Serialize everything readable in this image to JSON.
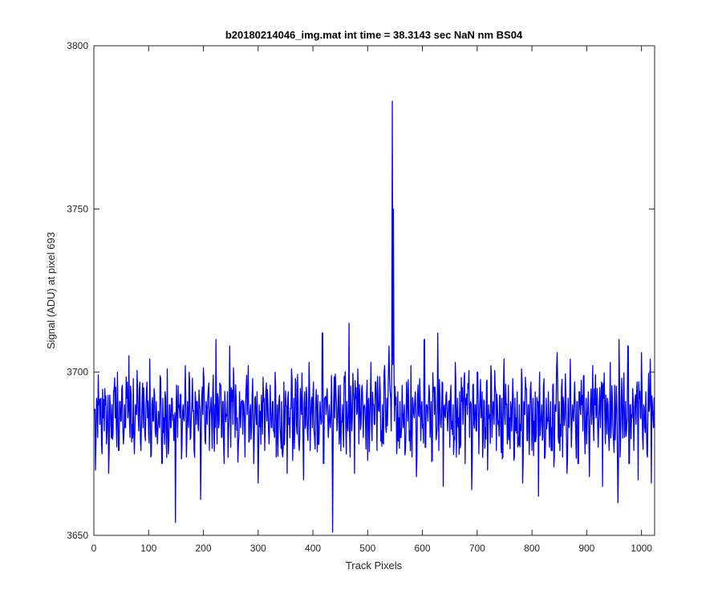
{
  "chart_data": {
    "type": "line",
    "title": "b20180214046_img.mat int time = 38.3143 sec  NaN nm BS04",
    "xlabel": "Track Pixels",
    "ylabel": "Signal (ADU) at pixel 693",
    "xlim": [
      0,
      1024
    ],
    "ylim": [
      3650,
      3800
    ],
    "x_ticks": [
      0,
      100,
      200,
      300,
      400,
      500,
      600,
      700,
      800,
      900,
      1000
    ],
    "y_ticks": [
      3650,
      3700,
      3750,
      3800
    ],
    "grid": false,
    "line_color": "#0000ff",
    "series": [
      {
        "x_start": 1,
        "x_step": 1,
        "noise_baseline": 3687,
        "values": [
          3688,
          3670,
          3692,
          3680,
          3690,
          3684,
          3692,
          3675,
          3686,
          3682,
          3690,
          3678,
          3688,
          3669,
          3693,
          3684,
          3690,
          3681,
          3695,
          3686,
          3683,
          3700,
          3676,
          3691,
          3685,
          3696,
          3678,
          3690,
          3683,
          3692,
          3686,
          3705,
          3680,
          3693,
          3684,
          3698,
          3675,
          3690,
          3687,
          3694,
          3682,
          3697,
          3676,
          3691,
          3683,
          3690,
          3679,
          3694,
          3686,
          3681,
          3704,
          3674,
          3690,
          3685,
          3695,
          3682,
          3691,
          3678,
          3688,
          3683,
          3698,
          3672,
          3692,
          3686,
          3694,
          3680,
          3701,
          3675,
          3690,
          3683,
          3692,
          3687,
          3684,
          3654,
          3696,
          3680,
          3689,
          3686,
          3693,
          3678,
          3690,
          3685,
          3702,
          3674,
          3691,
          3683,
          3697,
          3680,
          3690,
          3688,
          3676,
          3694,
          3684,
          3691,
          3682,
          3690,
          3661,
          3692,
          3687,
          3698,
          3679,
          3691,
          3684,
          3695,
          3676,
          3689,
          3686,
          3693,
          3683,
          3690,
          3710,
          3678,
          3692,
          3685,
          3696,
          3680,
          3691,
          3672,
          3689,
          3687,
          3694,
          3682,
          3708,
          3677,
          3691,
          3684,
          3696,
          3680,
          3690,
          3686,
          3678,
          3694,
          3683,
          3691,
          3681,
          3690,
          3674,
          3695,
          3687,
          3702,
          3679,
          3690,
          3683,
          3698,
          3672,
          3692,
          3686,
          3694,
          3666,
          3690,
          3688,
          3693,
          3681,
          3691,
          3676,
          3694,
          3685,
          3690,
          3678,
          3696,
          3683,
          3691,
          3682,
          3700,
          3674,
          3690,
          3686,
          3693,
          3680,
          3691,
          3674,
          3697,
          3684,
          3690,
          3669,
          3694,
          3686,
          3689,
          3701,
          3673,
          3692,
          3683,
          3697,
          3681,
          3691,
          3676,
          3695,
          3687,
          3690,
          3667,
          3694,
          3684,
          3692,
          3679,
          3703,
          3676,
          3691,
          3683,
          3697,
          3680,
          3690,
          3688,
          3693,
          3678,
          3691,
          3684,
          3712,
          3672,
          3692,
          3687,
          3695,
          3680,
          3690,
          3683,
          3699,
          3651,
          3692,
          3686,
          3694,
          3682,
          3691,
          3678,
          3696,
          3685,
          3690,
          3677,
          3697,
          3683,
          3691,
          3682,
          3715,
          3674,
          3690,
          3686,
          3694,
          3669,
          3692,
          3687,
          3701,
          3678,
          3691,
          3684,
          3696,
          3680,
          3690,
          3685,
          3693,
          3673,
          3692,
          3686,
          3703,
          3679,
          3690,
          3684,
          3697,
          3676,
          3691,
          3688,
          3694,
          3682,
          3690,
          3678,
          3702,
          3683,
          3692,
          3690,
          3708,
          3694,
          3682,
          3783,
          3750,
          3685,
          3690,
          3675,
          3694,
          3686,
          3691,
          3680,
          3696,
          3683,
          3690,
          3676,
          3697,
          3685,
          3691,
          3682,
          3702,
          3674,
          3690,
          3686,
          3694,
          3668,
          3692,
          3687,
          3698,
          3679,
          3691,
          3684,
          3710,
          3677,
          3690,
          3685,
          3696,
          3680,
          3691,
          3673,
          3694,
          3687,
          3690,
          3681,
          3712,
          3676,
          3692,
          3683,
          3697,
          3665,
          3690,
          3686,
          3694,
          3682,
          3691,
          3677,
          3696,
          3685,
          3690,
          3680,
          3703,
          3674,
          3692,
          3686,
          3694,
          3678,
          3691,
          3684,
          3698,
          3672,
          3690,
          3687,
          3695,
          3680,
          3691,
          3664,
          3696,
          3684,
          3690,
          3682,
          3700,
          3675,
          3692,
          3686,
          3694,
          3679,
          3691,
          3683,
          3697,
          3670,
          3690,
          3687,
          3702,
          3680,
          3691,
          3684,
          3695,
          3676,
          3690,
          3685,
          3693,
          3681,
          3692,
          3674,
          3704,
          3684,
          3690,
          3678,
          3696,
          3686,
          3691,
          3682,
          3698,
          3673,
          3692,
          3686,
          3694,
          3680,
          3690,
          3684,
          3701,
          3666,
          3691,
          3687,
          3695,
          3679,
          3690,
          3683,
          3697,
          3676,
          3692,
          3685,
          3694,
          3681,
          3691,
          3662,
          3700,
          3684,
          3690,
          3680,
          3698,
          3674,
          3692,
          3686,
          3694,
          3677,
          3691,
          3683,
          3696,
          3671,
          3690,
          3688,
          3706,
          3680,
          3691,
          3684,
          3695,
          3674,
          3690,
          3686,
          3693,
          3669,
          3692,
          3683,
          3704,
          3677,
          3690,
          3685,
          3697,
          3680,
          3691,
          3672,
          3694,
          3687,
          3690,
          3682,
          3699,
          3675,
          3692,
          3686,
          3694,
          3668,
          3691,
          3684,
          3702,
          3679,
          3690,
          3686,
          3695,
          3677,
          3691,
          3683,
          3697,
          3665,
          3692,
          3687,
          3693,
          3681,
          3690,
          3676,
          3703,
          3684,
          3691,
          3679,
          3696,
          3686,
          3690,
          3660,
          3710,
          3674,
          3692,
          3685,
          3694,
          3680,
          3691,
          3683,
          3708,
          3672,
          3690,
          3687,
          3695,
          3676,
          3691,
          3684,
          3697,
          3667,
          3692,
          3686,
          3706,
          3680,
          3690,
          3683,
          3694,
          3675,
          3691,
          3688,
          3704,
          3666,
          3690,
          3683,
          3683
        ]
      }
    ]
  }
}
